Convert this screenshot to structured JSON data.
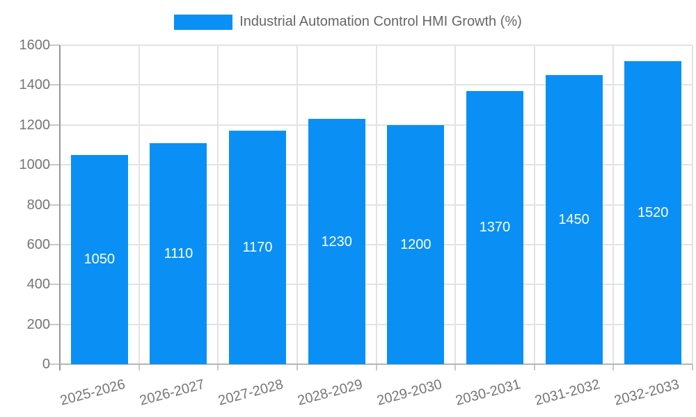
{
  "chart_data": {
    "type": "bar",
    "title": "Industrial Automation Control HMI Growth (%)",
    "legend_entries": [
      "Industrial Automation Control HMI Growth (%)"
    ],
    "categories": [
      "2025-2026",
      "2026-2027",
      "2027-2028",
      "2028-2029",
      "2029-2030",
      "2030-2031",
      "2031-2032",
      "2032-2033"
    ],
    "values": [
      1050,
      1110,
      1170,
      1230,
      1200,
      1370,
      1450,
      1520
    ],
    "xlabel": "",
    "ylabel": "",
    "ylim": [
      0,
      1600
    ],
    "yticks": [
      0,
      200,
      400,
      600,
      800,
      1000,
      1200,
      1400,
      1600
    ],
    "grid": true,
    "legend_position": "top-center",
    "colors": {
      "bar": "#0A90F5",
      "value_label": "#ffffff",
      "axis_text": "#757575",
      "title_text": "#666666",
      "gridline": "#e3e3e3",
      "axis_line": "#969696",
      "baseline": "#b4b4b4",
      "tick": "#c9c9c9"
    }
  }
}
